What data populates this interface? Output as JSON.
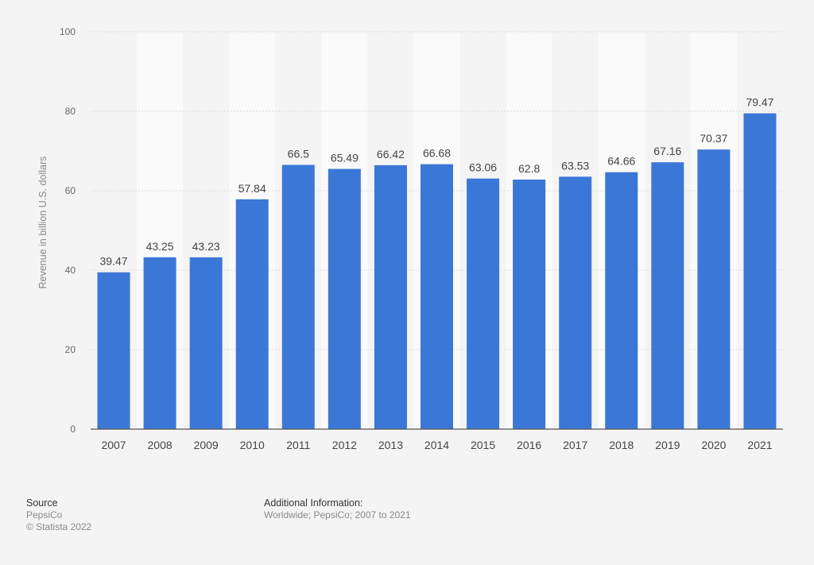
{
  "colors": {
    "bar": "#3b77d6",
    "background": "#f4f4f4",
    "band": "#fafafa",
    "grid": "#dcdcdc",
    "axis_text": "#666666",
    "label_text": "#444444"
  },
  "chart_data": {
    "type": "bar",
    "categories": [
      "2007",
      "2008",
      "2009",
      "2010",
      "2011",
      "2012",
      "2013",
      "2014",
      "2015",
      "2016",
      "2017",
      "2018",
      "2019",
      "2020",
      "2021"
    ],
    "values": [
      39.47,
      43.25,
      43.23,
      57.84,
      66.5,
      65.49,
      66.42,
      66.68,
      63.06,
      62.8,
      63.53,
      64.66,
      67.16,
      70.37,
      79.47
    ],
    "value_labels": [
      "39.47",
      "43.25",
      "43.23",
      "57.84",
      "66.5",
      "65.49",
      "66.42",
      "66.68",
      "63.06",
      "62.8",
      "63.53",
      "64.66",
      "67.16",
      "70.37",
      "79.47"
    ],
    "ylabel": "Revenue in billion U.S. dollars",
    "xlabel": "",
    "title": "",
    "ylim": [
      0,
      100
    ],
    "yticks": [
      0,
      20,
      40,
      60,
      80,
      100
    ],
    "ytick_labels": [
      "0",
      "20",
      "40",
      "60",
      "80",
      "100"
    ],
    "grid": true,
    "legend": "none"
  },
  "footer": {
    "source_heading": "Source",
    "source_name": "PepsiCo",
    "copyright": "© Statista 2022",
    "additional_heading": "Additional Information:",
    "additional_text": "Worldwide; PepsiCo; 2007 to 2021"
  }
}
